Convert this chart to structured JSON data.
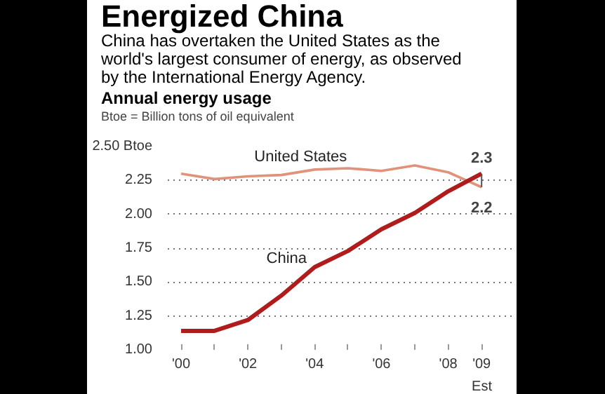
{
  "chart_data": {
    "type": "line",
    "title": "Energized China",
    "subtitle": "China has overtaken the United States as the world's largest consumer of energy, as observed by the International Energy Agency.",
    "ylabel": "Annual energy usage",
    "annotations": [
      "Btoe = Billion tons of oil equivalent",
      "Est",
      {
        "text": "2.3",
        "x": 2009,
        "y": 2.3
      },
      {
        "text": "2.2",
        "x": 2009,
        "y": 2.2
      }
    ],
    "x": [
      2000,
      2001,
      2002,
      2003,
      2004,
      2005,
      2006,
      2007,
      2008,
      2009
    ],
    "series": [
      {
        "name": "United States",
        "color": "#e0937a",
        "values": [
          2.3,
          2.26,
          2.28,
          2.29,
          2.33,
          2.34,
          2.32,
          2.36,
          2.31,
          2.2
        ]
      },
      {
        "name": "China",
        "color": "#b01c1c",
        "values": [
          1.14,
          1.14,
          1.22,
          1.4,
          1.61,
          1.73,
          1.89,
          2.01,
          2.17,
          2.3
        ]
      }
    ],
    "xlim": [
      1999.6,
      2009.9
    ],
    "ylim": [
      1.0,
      2.5
    ],
    "xticks": [
      {
        "value": 2000,
        "label": "'00"
      },
      {
        "value": 2001,
        "label": null
      },
      {
        "value": 2002,
        "label": "'02"
      },
      {
        "value": 2003,
        "label": null
      },
      {
        "value": 2004,
        "label": "'04"
      },
      {
        "value": 2005,
        "label": null
      },
      {
        "value": 2006,
        "label": "'06"
      },
      {
        "value": 2007,
        "label": null
      },
      {
        "value": 2008,
        "label": "'08"
      },
      {
        "value": 2009,
        "label": "'09"
      }
    ],
    "yticks": [
      {
        "value": 1.0,
        "label": "1.00"
      },
      {
        "value": 1.25,
        "label": "1.25"
      },
      {
        "value": 1.5,
        "label": "1.50"
      },
      {
        "value": 1.75,
        "label": "1.75"
      },
      {
        "value": 2.0,
        "label": "2.00"
      },
      {
        "value": 2.25,
        "label": "2.25"
      },
      {
        "value": 2.5,
        "label": "2.50 Btoe"
      }
    ],
    "grid": "y",
    "legend": false,
    "marker": "none",
    "line_style": "solid"
  }
}
